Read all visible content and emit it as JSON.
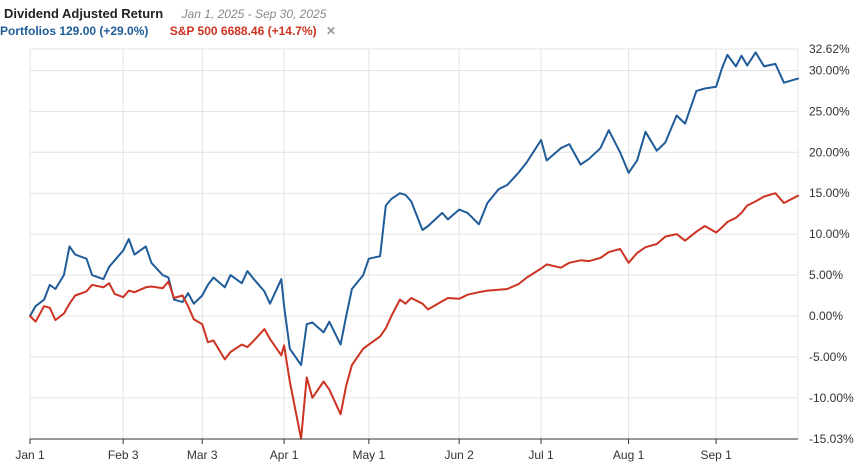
{
  "header": {
    "title": "Dividend Adjusted Return",
    "subtitle": "Jan 1, 2025 - Sep 30, 2025",
    "legend_portfolios": "Portfolios 129.00 (+29.0%)",
    "legend_sp500": "S&P 500 6688.46 (+14.7%)",
    "remove_symbol": "✕"
  },
  "colors": {
    "portfolios": "#1f5c99",
    "sp500": "#cc3322",
    "grid": "#e3e3e3"
  },
  "chart_data": {
    "type": "line",
    "title": "Dividend Adjusted Return",
    "xlabel": "",
    "ylabel": "",
    "x_range": [
      "2025-01-01",
      "2025-09-30"
    ],
    "ylim": [
      -15.03,
      32.62
    ],
    "grid": true,
    "legend_position": "top-left",
    "x_ticks": [
      {
        "date": "2025-01-01",
        "label": "Jan 1"
      },
      {
        "date": "2025-02-03",
        "label": "Feb 3"
      },
      {
        "date": "2025-03-03",
        "label": "Mar 3"
      },
      {
        "date": "2025-04-01",
        "label": "Apr 1"
      },
      {
        "date": "2025-05-01",
        "label": "May 1"
      },
      {
        "date": "2025-06-02",
        "label": "Jun 2"
      },
      {
        "date": "2025-07-01",
        "label": "Jul 1"
      },
      {
        "date": "2025-08-01",
        "label": "Aug 1"
      },
      {
        "date": "2025-09-01",
        "label": "Sep 1"
      }
    ],
    "y_ticks": [
      {
        "value": 32.62,
        "label": "32.62%"
      },
      {
        "value": 30,
        "label": "30.00%"
      },
      {
        "value": 25,
        "label": "25.00%"
      },
      {
        "value": 20,
        "label": "20.00%"
      },
      {
        "value": 15,
        "label": "15.00%"
      },
      {
        "value": 10,
        "label": "10.00%"
      },
      {
        "value": 5,
        "label": "5.00%"
      },
      {
        "value": 0,
        "label": "0.00%"
      },
      {
        "value": -5,
        "label": "-5.00%"
      },
      {
        "value": -10,
        "label": "-10.00%"
      },
      {
        "value": -15.03,
        "label": "-15.03%"
      }
    ],
    "series": [
      {
        "name": "Portfolios",
        "color": "#1f5c99",
        "data": [
          [
            "2025-01-01",
            0
          ],
          [
            "2025-01-03",
            1.2
          ],
          [
            "2025-01-06",
            2
          ],
          [
            "2025-01-08",
            3.8
          ],
          [
            "2025-01-10",
            3.3
          ],
          [
            "2025-01-13",
            5
          ],
          [
            "2025-01-15",
            8.5
          ],
          [
            "2025-01-17",
            7.5
          ],
          [
            "2025-01-21",
            7
          ],
          [
            "2025-01-23",
            5
          ],
          [
            "2025-01-27",
            4.5
          ],
          [
            "2025-01-29",
            6
          ],
          [
            "2025-01-31",
            6.8
          ],
          [
            "2025-02-03",
            8
          ],
          [
            "2025-02-05",
            9.4
          ],
          [
            "2025-02-07",
            7.5
          ],
          [
            "2025-02-11",
            8.5
          ],
          [
            "2025-02-13",
            6.5
          ],
          [
            "2025-02-17",
            5
          ],
          [
            "2025-02-19",
            4.7
          ],
          [
            "2025-02-21",
            2
          ],
          [
            "2025-02-24",
            1.7
          ],
          [
            "2025-02-26",
            2.8
          ],
          [
            "2025-02-28",
            1.5
          ],
          [
            "2025-03-03",
            2.5
          ],
          [
            "2025-03-05",
            3.8
          ],
          [
            "2025-03-07",
            4.7
          ],
          [
            "2025-03-11",
            3.5
          ],
          [
            "2025-03-13",
            5
          ],
          [
            "2025-03-17",
            4
          ],
          [
            "2025-03-19",
            5.5
          ],
          [
            "2025-03-21",
            4.6
          ],
          [
            "2025-03-25",
            3
          ],
          [
            "2025-03-27",
            1.5
          ],
          [
            "2025-03-31",
            4.5
          ],
          [
            "2025-04-01",
            1.2
          ],
          [
            "2025-04-03",
            -4
          ],
          [
            "2025-04-07",
            -6
          ],
          [
            "2025-04-09",
            -1
          ],
          [
            "2025-04-11",
            -0.8
          ],
          [
            "2025-04-15",
            -2
          ],
          [
            "2025-04-17",
            -0.7
          ],
          [
            "2025-04-21",
            -3.5
          ],
          [
            "2025-04-23",
            0
          ],
          [
            "2025-04-25",
            3.3
          ],
          [
            "2025-04-29",
            5
          ],
          [
            "2025-05-01",
            7
          ],
          [
            "2025-05-05",
            7.3
          ],
          [
            "2025-05-07",
            13.5
          ],
          [
            "2025-05-09",
            14.3
          ],
          [
            "2025-05-12",
            15
          ],
          [
            "2025-05-14",
            14.8
          ],
          [
            "2025-05-16",
            14
          ],
          [
            "2025-05-20",
            10.5
          ],
          [
            "2025-05-22",
            11
          ],
          [
            "2025-05-27",
            12.6
          ],
          [
            "2025-05-29",
            11.8
          ],
          [
            "2025-06-02",
            13
          ],
          [
            "2025-06-05",
            12.6
          ],
          [
            "2025-06-09",
            11.2
          ],
          [
            "2025-06-12",
            13.8
          ],
          [
            "2025-06-16",
            15.5
          ],
          [
            "2025-06-19",
            16
          ],
          [
            "2025-06-23",
            17.5
          ],
          [
            "2025-06-26",
            18.8
          ],
          [
            "2025-07-01",
            21.5
          ],
          [
            "2025-07-03",
            19
          ],
          [
            "2025-07-08",
            20.5
          ],
          [
            "2025-07-11",
            21
          ],
          [
            "2025-07-15",
            18.5
          ],
          [
            "2025-07-18",
            19.2
          ],
          [
            "2025-07-22",
            20.5
          ],
          [
            "2025-07-25",
            22.7
          ],
          [
            "2025-07-29",
            20
          ],
          [
            "2025-08-01",
            17.5
          ],
          [
            "2025-08-04",
            19
          ],
          [
            "2025-08-07",
            22.5
          ],
          [
            "2025-08-11",
            20.2
          ],
          [
            "2025-08-14",
            21.2
          ],
          [
            "2025-08-18",
            24.5
          ],
          [
            "2025-08-21",
            23.5
          ],
          [
            "2025-08-25",
            27.5
          ],
          [
            "2025-08-28",
            27.8
          ],
          [
            "2025-09-01",
            28
          ],
          [
            "2025-09-03",
            30.2
          ],
          [
            "2025-09-05",
            31.9
          ],
          [
            "2025-09-08",
            30.5
          ],
          [
            "2025-09-10",
            31.8
          ],
          [
            "2025-09-12",
            30.6
          ],
          [
            "2025-09-15",
            32.2
          ],
          [
            "2025-09-18",
            30.5
          ],
          [
            "2025-09-22",
            30.8
          ],
          [
            "2025-09-25",
            28.5
          ],
          [
            "2025-09-30",
            29
          ]
        ]
      },
      {
        "name": "S&P 500",
        "color": "#cc3322",
        "data": [
          [
            "2025-01-01",
            0
          ],
          [
            "2025-01-03",
            -0.7
          ],
          [
            "2025-01-06",
            1.2
          ],
          [
            "2025-01-08",
            1
          ],
          [
            "2025-01-10",
            -0.5
          ],
          [
            "2025-01-13",
            0.3
          ],
          [
            "2025-01-15",
            1.5
          ],
          [
            "2025-01-17",
            2.5
          ],
          [
            "2025-01-21",
            3
          ],
          [
            "2025-01-23",
            3.8
          ],
          [
            "2025-01-27",
            3.5
          ],
          [
            "2025-01-29",
            4
          ],
          [
            "2025-01-31",
            2.7
          ],
          [
            "2025-02-03",
            2.3
          ],
          [
            "2025-02-05",
            3.1
          ],
          [
            "2025-02-07",
            2.9
          ],
          [
            "2025-02-11",
            3.5
          ],
          [
            "2025-02-13",
            3.6
          ],
          [
            "2025-02-17",
            3.4
          ],
          [
            "2025-02-19",
            4.2
          ],
          [
            "2025-02-21",
            2.2
          ],
          [
            "2025-02-24",
            2.5
          ],
          [
            "2025-02-26",
            1.2
          ],
          [
            "2025-02-28",
            -0.4
          ],
          [
            "2025-03-03",
            -1
          ],
          [
            "2025-03-05",
            -3.2
          ],
          [
            "2025-03-07",
            -3
          ],
          [
            "2025-03-11",
            -5.3
          ],
          [
            "2025-03-13",
            -4.4
          ],
          [
            "2025-03-17",
            -3.5
          ],
          [
            "2025-03-19",
            -3.8
          ],
          [
            "2025-03-21",
            -3.1
          ],
          [
            "2025-03-25",
            -1.6
          ],
          [
            "2025-03-27",
            -2.8
          ],
          [
            "2025-03-31",
            -4.8
          ],
          [
            "2025-04-01",
            -3.6
          ],
          [
            "2025-04-03",
            -8
          ],
          [
            "2025-04-07",
            -15
          ],
          [
            "2025-04-09",
            -7.5
          ],
          [
            "2025-04-11",
            -10
          ],
          [
            "2025-04-15",
            -8
          ],
          [
            "2025-04-17",
            -9
          ],
          [
            "2025-04-21",
            -12
          ],
          [
            "2025-04-23",
            -8.5
          ],
          [
            "2025-04-25",
            -6
          ],
          [
            "2025-04-29",
            -4
          ],
          [
            "2025-05-01",
            -3.5
          ],
          [
            "2025-05-05",
            -2.5
          ],
          [
            "2025-05-07",
            -1.5
          ],
          [
            "2025-05-09",
            0
          ],
          [
            "2025-05-12",
            2
          ],
          [
            "2025-05-14",
            1.5
          ],
          [
            "2025-05-16",
            2.2
          ],
          [
            "2025-05-20",
            1.5
          ],
          [
            "2025-05-22",
            0.8
          ],
          [
            "2025-05-27",
            1.8
          ],
          [
            "2025-05-29",
            2.2
          ],
          [
            "2025-06-02",
            2.1
          ],
          [
            "2025-06-05",
            2.6
          ],
          [
            "2025-06-09",
            2.9
          ],
          [
            "2025-06-12",
            3.1
          ],
          [
            "2025-06-16",
            3.2
          ],
          [
            "2025-06-19",
            3.3
          ],
          [
            "2025-06-23",
            3.9
          ],
          [
            "2025-06-26",
            4.7
          ],
          [
            "2025-07-01",
            5.8
          ],
          [
            "2025-07-03",
            6.3
          ],
          [
            "2025-07-08",
            5.9
          ],
          [
            "2025-07-11",
            6.5
          ],
          [
            "2025-07-15",
            6.8
          ],
          [
            "2025-07-18",
            6.7
          ],
          [
            "2025-07-22",
            7.1
          ],
          [
            "2025-07-25",
            7.8
          ],
          [
            "2025-07-29",
            8.2
          ],
          [
            "2025-08-01",
            6.5
          ],
          [
            "2025-08-04",
            7.7
          ],
          [
            "2025-08-07",
            8.4
          ],
          [
            "2025-08-11",
            8.8
          ],
          [
            "2025-08-14",
            9.7
          ],
          [
            "2025-08-18",
            10
          ],
          [
            "2025-08-21",
            9.2
          ],
          [
            "2025-08-25",
            10.3
          ],
          [
            "2025-08-28",
            11
          ],
          [
            "2025-09-01",
            10.2
          ],
          [
            "2025-09-03",
            10.8
          ],
          [
            "2025-09-05",
            11.5
          ],
          [
            "2025-09-08",
            12
          ],
          [
            "2025-09-10",
            12.6
          ],
          [
            "2025-09-12",
            13.5
          ],
          [
            "2025-09-15",
            14
          ],
          [
            "2025-09-18",
            14.6
          ],
          [
            "2025-09-22",
            15
          ],
          [
            "2025-09-25",
            13.8
          ],
          [
            "2025-09-30",
            14.7
          ]
        ]
      }
    ]
  }
}
